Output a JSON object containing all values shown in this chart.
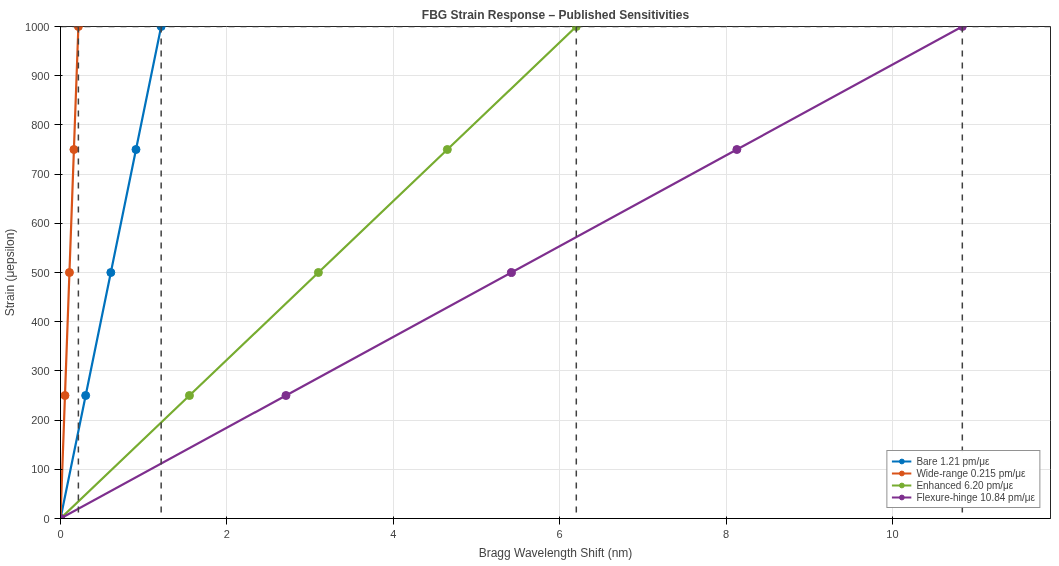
{
  "chart_data": {
    "type": "line",
    "title": "FBG Strain Response – Published Sensitivities",
    "xlabel": "Bragg Wavelength Shift (nm)",
    "ylabel": "Strain (μepsilon)",
    "series": [
      {
        "name": "Bare 1.21 pm/με",
        "color": "#0072bd",
        "x": [
          0,
          0.3025,
          0.605,
          0.9075,
          1.21
        ],
        "values": [
          0,
          250,
          500,
          750,
          1000
        ]
      },
      {
        "name": "Wide-range 0.215 pm/με",
        "color": "#d95319",
        "x": [
          0,
          0.05375,
          0.1075,
          0.16125,
          0.215
        ],
        "values": [
          0,
          250,
          500,
          750,
          1000
        ]
      },
      {
        "name": "Enhanced 6.20 pm/με",
        "color": "#77ac30",
        "x": [
          0,
          1.55,
          3.1,
          4.65,
          6.2
        ],
        "values": [
          0,
          250,
          500,
          750,
          1000
        ]
      },
      {
        "name": "Flexure-hinge 10.84 pm/με",
        "color": "#7e2f8e",
        "x": [
          0,
          2.71,
          5.42,
          8.13,
          10.84
        ],
        "values": [
          0,
          250,
          500,
          750,
          1000
        ]
      }
    ],
    "ref_lines": [
      {
        "axis": "x",
        "value": 0.215,
        "color": "#404040",
        "line_style": "dashed"
      },
      {
        "axis": "x",
        "value": 1.21,
        "color": "#404040",
        "line_style": "dashed"
      },
      {
        "axis": "x",
        "value": 6.2,
        "color": "#404040",
        "line_style": "dashed"
      },
      {
        "axis": "x",
        "value": 10.84,
        "color": "#404040",
        "line_style": "dashed"
      },
      {
        "axis": "y",
        "value": 1000,
        "color": "#404040",
        "line_style": "dashed"
      }
    ],
    "xlim": [
      0,
      11.9
    ],
    "xticks": [
      0,
      2,
      4,
      6,
      8,
      10
    ],
    "ylim": [
      0,
      1000
    ],
    "yticks": [
      0,
      100,
      200,
      300,
      400,
      500,
      600,
      700,
      800,
      900,
      1000
    ],
    "grid": true,
    "legend": "bottom right",
    "marker": "circle",
    "line_style": "solid"
  }
}
